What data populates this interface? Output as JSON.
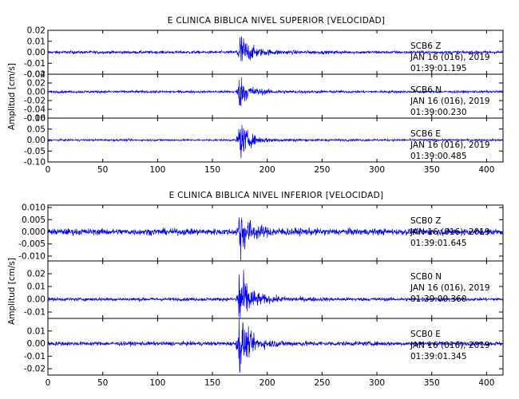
{
  "chart_data": [
    {
      "type": "line",
      "title": "E CLINICA BIBLICA NIVEL SUPERIOR [VELOCIDAD]",
      "ylabel": "Amplitud [cm/s]",
      "xlim": [
        0,
        415
      ],
      "x_ticks": [
        "0",
        "50",
        "100",
        "150",
        "200",
        "250",
        "300",
        "350",
        "400"
      ],
      "panels": [
        {
          "station": "SCB6",
          "component": "Z",
          "date": "JAN 16 (016), 2019",
          "time": "01:39:01.195",
          "ylim": [
            -0.02,
            0.02
          ],
          "y_ticks": [
            "0.02",
            "0.01",
            "0.00",
            "-0.01",
            "-0.02"
          ],
          "background_amp": 0.0012,
          "peak_amp": 0.019,
          "event_time": 174
        },
        {
          "station": "SCB6",
          "component": "N",
          "date": "JAN 16 (016), 2019",
          "time": "01:39:00.230",
          "ylim": [
            -0.06,
            0.04
          ],
          "y_ticks": [
            "0.04",
            "0.02",
            "0.00",
            "-0.02",
            "-0.04",
            "-0.06"
          ],
          "background_amp": 0.0025,
          "peak_amp": 0.035,
          "event_time": 174
        },
        {
          "station": "SCB6",
          "component": "E",
          "date": "JAN 16 (016), 2019",
          "time": "01:39:00.485",
          "ylim": [
            -0.1,
            0.1
          ],
          "y_ticks": [
            "0.10",
            "0.05",
            "0.00",
            "-0.05",
            "-0.10"
          ],
          "background_amp": 0.004,
          "peak_amp": 0.085,
          "event_time": 174
        }
      ]
    },
    {
      "type": "line",
      "title": "E CLINICA BIBLICA NIVEL INFERIOR [VELOCIDAD]",
      "ylabel": "Amplitud [cm/s]",
      "xlim": [
        0,
        415
      ],
      "x_ticks": [
        "0",
        "50",
        "100",
        "150",
        "200",
        "250",
        "300",
        "350",
        "400"
      ],
      "panels": [
        {
          "station": "SCB0",
          "component": "Z",
          "date": "JAN 16 (016), 2019",
          "time": "01:39:01.645",
          "ylim": [
            -0.012,
            0.011
          ],
          "y_ticks": [
            "0.010",
            "0.005",
            "0.000",
            "-0.005",
            "-0.010"
          ],
          "background_amp": 0.0012,
          "peak_amp": 0.0105,
          "event_time": 174
        },
        {
          "station": "SCB0",
          "component": "N",
          "date": "JAN 16 (016), 2019",
          "time": "01:39:00.360",
          "ylim": [
            -0.015,
            0.03
          ],
          "y_ticks": [
            "0.02",
            "0.01",
            "0.00",
            "-0.01"
          ],
          "background_amp": 0.0012,
          "peak_amp": 0.026,
          "event_time": 174
        },
        {
          "station": "SCB0",
          "component": "E",
          "date": "JAN 16 (016), 2019",
          "time": "01:39:01.345",
          "ylim": [
            -0.025,
            0.02
          ],
          "y_ticks": [
            "0.01",
            "0.00",
            "-0.01",
            "-0.02"
          ],
          "background_amp": 0.0015,
          "peak_amp": 0.022,
          "event_time": 174
        }
      ]
    }
  ],
  "colors": {
    "trace": "#0000ee",
    "axes": "#000000",
    "background": "#ffffff"
  }
}
